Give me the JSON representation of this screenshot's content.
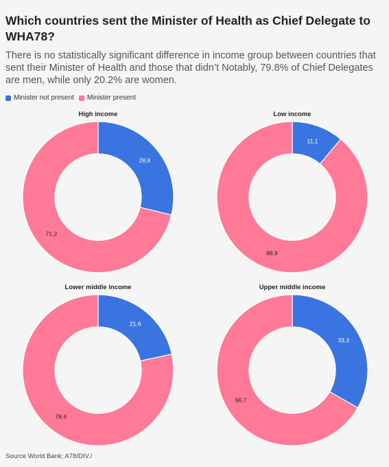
{
  "title": "Which countries sent the Minister of Health as Chief Delegate to WHA78?",
  "subtitle": "There is no statistically significant difference in income group between countries that sent their Minister of Health and those that didn’t Notably, 79.8% of Chief Delegates are men, while only 20.2% are women.",
  "legend": [
    {
      "label": "Minister not present",
      "color": "#3a74e0"
    },
    {
      "label": "Minister present",
      "color": "#ff7a96"
    }
  ],
  "source": "Source World Bank; A78/DIV./",
  "chart_data": [
    {
      "type": "pie",
      "title": "High income",
      "categories": [
        "Minister not present",
        "Minister present"
      ],
      "values": [
        28.8,
        71.2
      ],
      "labels": [
        "28,8",
        "71,2"
      ],
      "colors": [
        "#3a74e0",
        "#ff7a96"
      ]
    },
    {
      "type": "pie",
      "title": "Low income",
      "categories": [
        "Minister not present",
        "Minister present"
      ],
      "values": [
        11.1,
        88.9
      ],
      "labels": [
        "11,1",
        "88,9"
      ],
      "colors": [
        "#3a74e0",
        "#ff7a96"
      ]
    },
    {
      "type": "pie",
      "title": "Lower middle income",
      "categories": [
        "Minister not present",
        "Minister present"
      ],
      "values": [
        21.6,
        78.4
      ],
      "labels": [
        "21,6",
        "78,4"
      ],
      "colors": [
        "#3a74e0",
        "#ff7a96"
      ]
    },
    {
      "type": "pie",
      "title": "Upper middle income",
      "categories": [
        "Minister not present",
        "Minister present"
      ],
      "values": [
        33.3,
        66.7
      ],
      "labels": [
        "33,3",
        "66,7"
      ],
      "colors": [
        "#3a74e0",
        "#ff7a96"
      ]
    }
  ]
}
